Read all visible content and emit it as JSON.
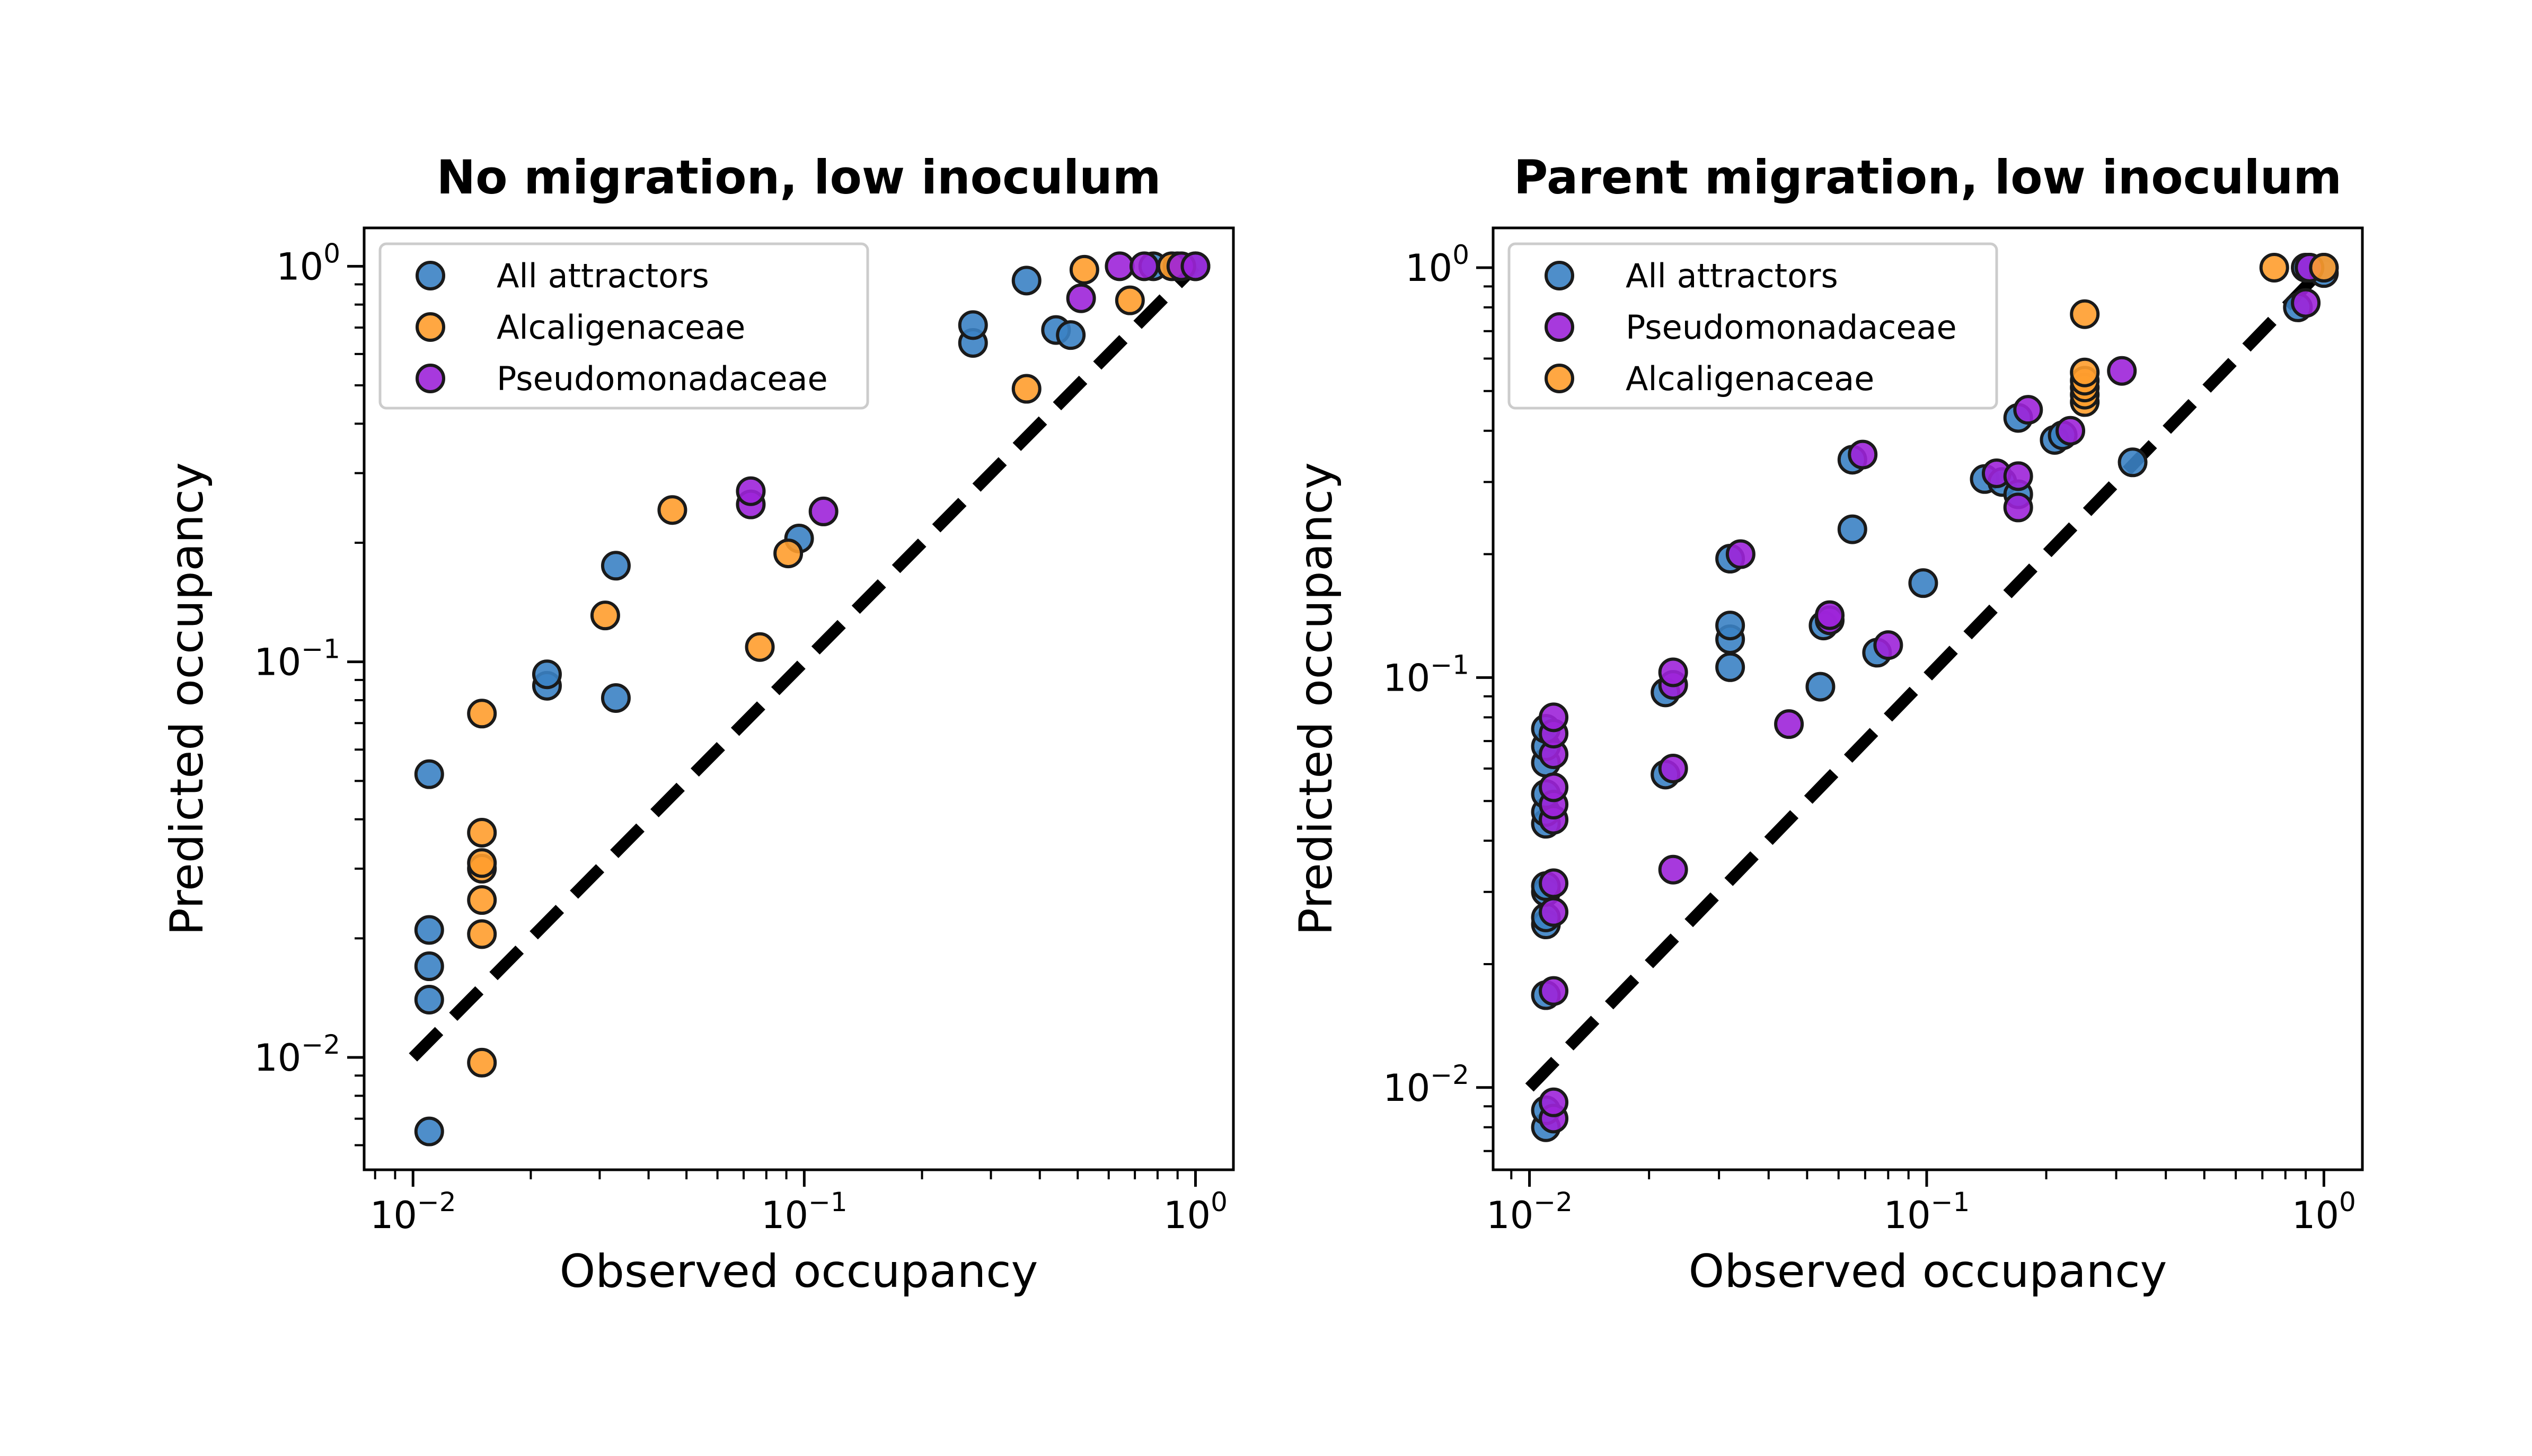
{
  "colors": {
    "all_attractors": "#3b82c4",
    "alcaligenaceae": "#ff9d2e",
    "pseudomonadaceae": "#9d24d9",
    "marker_edge": "#1a1a1a",
    "identity_line": "#000000"
  },
  "chart_data": [
    {
      "type": "scatter",
      "title": "No migration, low inoculum",
      "xlabel": "Observed occupancy",
      "ylabel": "Predicted occupancy",
      "xscale": "log",
      "yscale": "log",
      "xlim": [
        0.0075,
        1.25
      ],
      "ylim": [
        0.0052,
        1.25
      ],
      "xticks": [
        {
          "value": 0.01,
          "base": "10",
          "exp": "−2"
        },
        {
          "value": 0.1,
          "base": "10",
          "exp": "−1"
        },
        {
          "value": 1,
          "base": "10",
          "exp": "0"
        }
      ],
      "yticks": [
        {
          "value": 0.01,
          "base": "10",
          "exp": "−2"
        },
        {
          "value": 0.1,
          "base": "10",
          "exp": "−1"
        },
        {
          "value": 1,
          "base": "10",
          "exp": "0"
        }
      ],
      "identity_line": [
        [
          0.01,
          0.01
        ],
        [
          1,
          1
        ]
      ],
      "legend_position": "top-left",
      "legend": [
        "All attractors",
        "Alcaligenaceae",
        "Pseudomonadaceae"
      ],
      "series": [
        {
          "name": "All attractors",
          "color_key": "all_attractors",
          "points": [
            [
              0.011,
              0.0065
            ],
            [
              0.011,
              0.014
            ],
            [
              0.011,
              0.017
            ],
            [
              0.011,
              0.021
            ],
            [
              0.011,
              0.052
            ],
            [
              0.022,
              0.087
            ],
            [
              0.022,
              0.093
            ],
            [
              0.033,
              0.081
            ],
            [
              0.033,
              0.175
            ],
            [
              0.097,
              0.205
            ],
            [
              0.27,
              0.64
            ],
            [
              0.27,
              0.71
            ],
            [
              0.37,
              0.92
            ],
            [
              0.44,
              0.69
            ],
            [
              0.48,
              0.67
            ],
            [
              0.78,
              1.0
            ],
            [
              0.9,
              1.0
            ],
            [
              1.0,
              1.0
            ]
          ]
        },
        {
          "name": "Alcaligenaceae",
          "color_key": "alcaligenaceae",
          "points": [
            [
              0.015,
              0.0097
            ],
            [
              0.015,
              0.0205
            ],
            [
              0.015,
              0.025
            ],
            [
              0.015,
              0.03
            ],
            [
              0.015,
              0.031
            ],
            [
              0.015,
              0.037
            ],
            [
              0.015,
              0.074
            ],
            [
              0.031,
              0.131
            ],
            [
              0.046,
              0.242
            ],
            [
              0.077,
              0.109
            ],
            [
              0.091,
              0.188
            ],
            [
              0.37,
              0.49
            ],
            [
              0.52,
              0.98
            ],
            [
              0.68,
              0.82
            ],
            [
              0.87,
              1.0
            ]
          ]
        },
        {
          "name": "Pseudomonadaceae",
          "color_key": "pseudomonadaceae",
          "points": [
            [
              0.073,
              0.25
            ],
            [
              0.073,
              0.27
            ],
            [
              0.112,
              0.24
            ],
            [
              0.51,
              0.83
            ],
            [
              0.64,
              1.0
            ],
            [
              0.74,
              1.0
            ],
            [
              0.92,
              1.0
            ],
            [
              1.0,
              1.0
            ]
          ]
        }
      ]
    },
    {
      "type": "scatter",
      "title": "Parent migration, low inoculum",
      "xlabel": "Observed occupancy",
      "ylabel": "Predicted occupancy",
      "xscale": "log",
      "yscale": "log",
      "xlim": [
        0.0081,
        1.25
      ],
      "ylim": [
        0.0063,
        1.25
      ],
      "xticks": [
        {
          "value": 0.01,
          "base": "10",
          "exp": "−2"
        },
        {
          "value": 0.1,
          "base": "10",
          "exp": "−1"
        },
        {
          "value": 1,
          "base": "10",
          "exp": "0"
        }
      ],
      "yticks": [
        {
          "value": 0.01,
          "base": "10",
          "exp": "−2"
        },
        {
          "value": 0.1,
          "base": "10",
          "exp": "−1"
        },
        {
          "value": 1,
          "base": "10",
          "exp": "0"
        }
      ],
      "identity_line": [
        [
          0.01,
          0.01
        ],
        [
          1,
          1
        ]
      ],
      "legend_position": "top-left",
      "legend": [
        "All attractors",
        "Pseudomonadaceae",
        "Alcaligenaceae"
      ],
      "series": [
        {
          "name": "All attractors",
          "color_key": "all_attractors",
          "points": [
            [
              0.011,
              0.008
            ],
            [
              0.011,
              0.0088
            ],
            [
              0.011,
              0.0168
            ],
            [
              0.011,
              0.025
            ],
            [
              0.011,
              0.026
            ],
            [
              0.011,
              0.03
            ],
            [
              0.011,
              0.031
            ],
            [
              0.011,
              0.044
            ],
            [
              0.011,
              0.047
            ],
            [
              0.011,
              0.052
            ],
            [
              0.011,
              0.062
            ],
            [
              0.011,
              0.068
            ],
            [
              0.011,
              0.075
            ],
            [
              0.022,
              0.058
            ],
            [
              0.022,
              0.092
            ],
            [
              0.032,
              0.106
            ],
            [
              0.032,
              0.124
            ],
            [
              0.032,
              0.134
            ],
            [
              0.032,
              0.195
            ],
            [
              0.054,
              0.095
            ],
            [
              0.055,
              0.134
            ],
            [
              0.065,
              0.23
            ],
            [
              0.065,
              0.34
            ],
            [
              0.075,
              0.115
            ],
            [
              0.098,
              0.17
            ],
            [
              0.14,
              0.305
            ],
            [
              0.155,
              0.3
            ],
            [
              0.17,
              0.28
            ],
            [
              0.17,
              0.43
            ],
            [
              0.21,
              0.38
            ],
            [
              0.22,
              0.39
            ],
            [
              0.33,
              0.335
            ],
            [
              0.86,
              0.8
            ],
            [
              0.9,
              1.0
            ],
            [
              0.92,
              1.0
            ],
            [
              1.0,
              0.97
            ],
            [
              1.0,
              1.0
            ]
          ]
        },
        {
          "name": "Pseudomonadaceae",
          "color_key": "pseudomonadaceae",
          "points": [
            [
              0.0115,
              0.0084
            ],
            [
              0.0115,
              0.0092
            ],
            [
              0.0115,
              0.0172
            ],
            [
              0.0115,
              0.0268
            ],
            [
              0.0115,
              0.0315
            ],
            [
              0.0115,
              0.045
            ],
            [
              0.0115,
              0.049
            ],
            [
              0.0115,
              0.054
            ],
            [
              0.0115,
              0.065
            ],
            [
              0.0115,
              0.073
            ],
            [
              0.0115,
              0.08
            ],
            [
              0.023,
              0.034
            ],
            [
              0.023,
              0.06
            ],
            [
              0.023,
              0.096
            ],
            [
              0.023,
              0.103
            ],
            [
              0.034,
              0.2
            ],
            [
              0.045,
              0.077
            ],
            [
              0.057,
              0.138
            ],
            [
              0.057,
              0.142
            ],
            [
              0.069,
              0.35
            ],
            [
              0.08,
              0.12
            ],
            [
              0.15,
              0.315
            ],
            [
              0.17,
              0.26
            ],
            [
              0.17,
              0.31
            ],
            [
              0.18,
              0.45
            ],
            [
              0.23,
              0.4
            ],
            [
              0.31,
              0.56
            ],
            [
              0.9,
              0.82
            ],
            [
              0.92,
              1.0
            ]
          ]
        },
        {
          "name": "Alcaligenaceae",
          "color_key": "alcaligenaceae",
          "points": [
            [
              0.25,
              0.47
            ],
            [
              0.25,
              0.49
            ],
            [
              0.25,
              0.51
            ],
            [
              0.25,
              0.53
            ],
            [
              0.25,
              0.555
            ],
            [
              0.25,
              0.77
            ],
            [
              0.75,
              1.0
            ],
            [
              1.0,
              1.0
            ]
          ]
        }
      ]
    }
  ]
}
